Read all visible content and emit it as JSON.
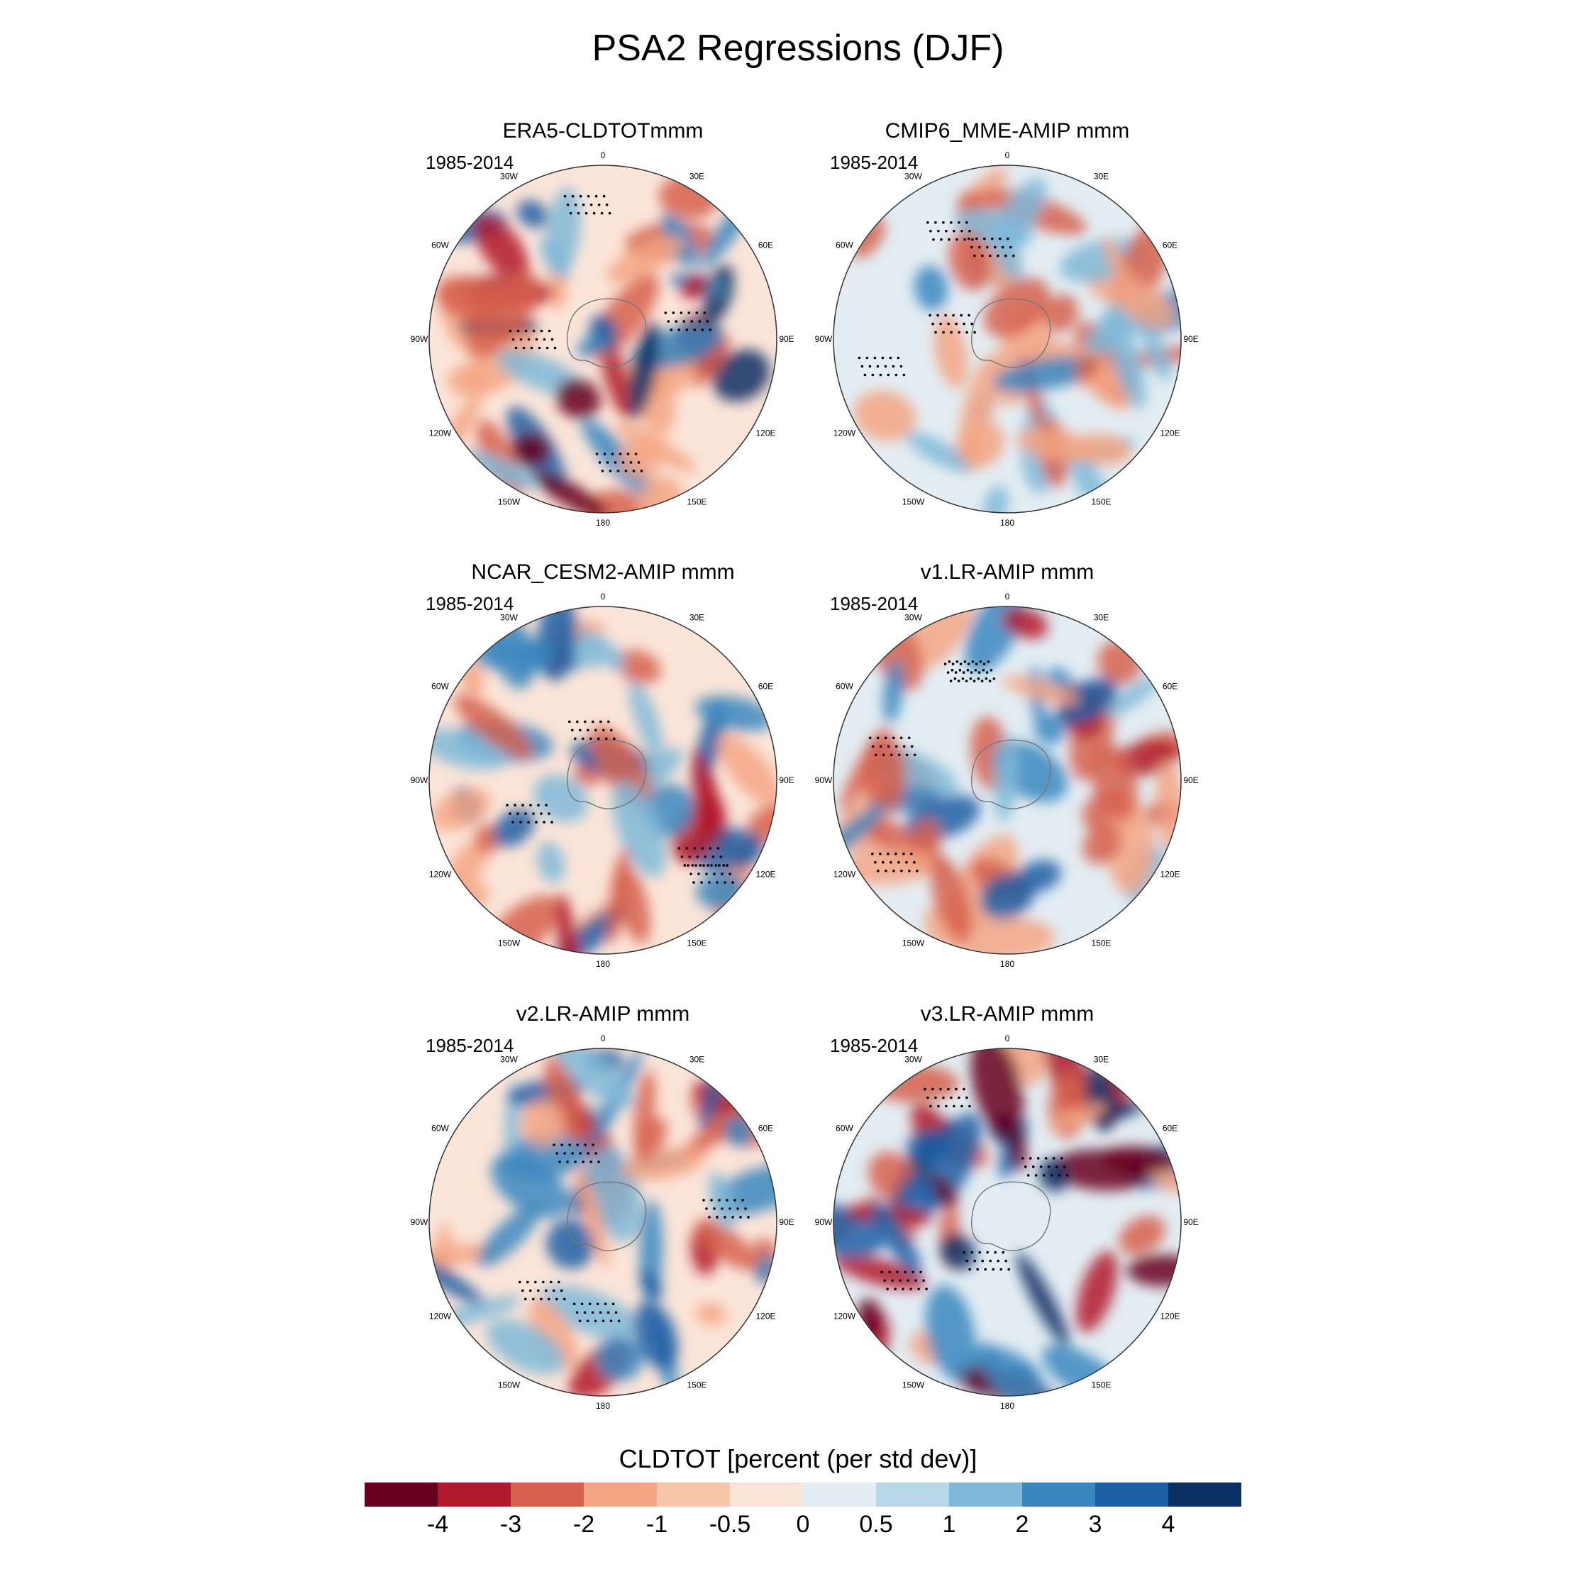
{
  "title": "PSA2 Regressions (DJF)",
  "chart_data": {
    "type": "heatmap",
    "projection": "south polar stereographic",
    "variable_label": "CLDTOT [percent (per std dev)]",
    "longitude_labels": [
      "0",
      "30E",
      "60E",
      "90E",
      "120E",
      "150E",
      "180",
      "150W",
      "120W",
      "90W",
      "60W",
      "30W"
    ],
    "colorbar": {
      "ticks": [
        "-4",
        "-3",
        "-2",
        "-1",
        "-0.5",
        "0",
        "0.5",
        "1",
        "2",
        "3",
        "4"
      ],
      "colors": [
        "#67001f",
        "#b2182b",
        "#d6604d",
        "#f4a582",
        "#f9c6aa",
        "#fbe5d9",
        "#e3edf3",
        "#b7d7e8",
        "#7fb8d8",
        "#3b87c0",
        "#1c5fa4",
        "#0a2f63"
      ]
    },
    "panels": [
      {
        "title": "ERA5-CLDTOTmmm",
        "period": "1985-2014"
      },
      {
        "title": "CMIP6_MME-AMIP  mmm",
        "period": "1985-2014"
      },
      {
        "title": "NCAR_CESM2-AMIP  mmm",
        "period": "1985-2014"
      },
      {
        "title": "v1.LR-AMIP  mmm",
        "period": "1985-2014"
      },
      {
        "title": "v2.LR-AMIP  mmm",
        "period": "1985-2014"
      },
      {
        "title": "v3.LR-AMIP  mmm",
        "period": "1985-2014"
      }
    ]
  }
}
